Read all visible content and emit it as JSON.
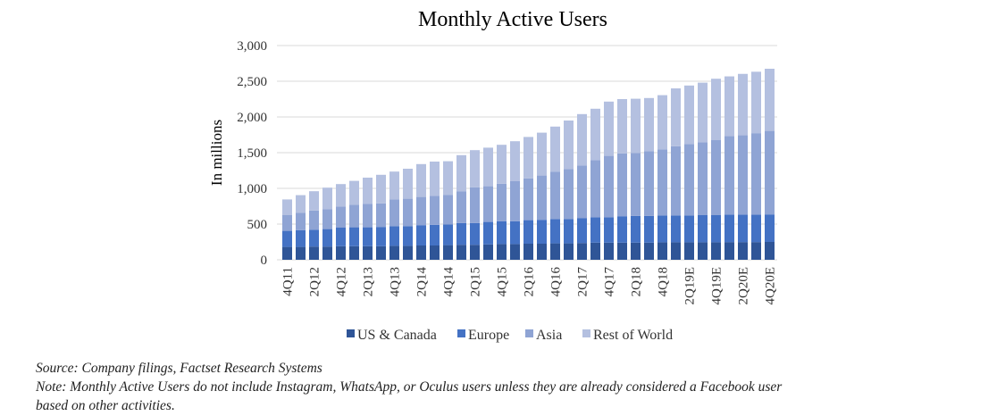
{
  "chart_data": {
    "type": "bar",
    "stacked": true,
    "title": "Monthly Active Users",
    "xlabel": "",
    "ylabel": "In millions",
    "ylim": [
      0,
      3000
    ],
    "yticks": [
      0,
      500,
      1000,
      1500,
      2000,
      2500,
      3000
    ],
    "ytick_labels": [
      "0",
      "500",
      "1,000",
      "1,500",
      "2,000",
      "2,500",
      "3,000"
    ],
    "grid": true,
    "legend_position": "bottom",
    "categories": [
      "4Q11",
      "1Q12",
      "2Q12",
      "3Q12",
      "4Q12",
      "1Q13",
      "2Q13",
      "3Q13",
      "4Q13",
      "1Q14",
      "2Q14",
      "3Q14",
      "4Q14",
      "1Q15",
      "2Q15",
      "3Q15",
      "4Q15",
      "1Q16",
      "2Q16",
      "3Q16",
      "4Q16",
      "1Q17",
      "2Q17",
      "3Q17",
      "4Q17",
      "1Q18",
      "2Q18",
      "3Q18",
      "4Q18",
      "1Q19E",
      "2Q19E",
      "3Q19E",
      "4Q19E",
      "1Q20E",
      "2Q20E",
      "3Q20E",
      "4Q20E"
    ],
    "visible_tick_labels": [
      "4Q11",
      "2Q12",
      "4Q12",
      "2Q13",
      "4Q13",
      "2Q14",
      "4Q14",
      "2Q15",
      "4Q15",
      "2Q16",
      "4Q16",
      "2Q17",
      "4Q17",
      "2Q18",
      "4Q18",
      "2Q19E",
      "4Q19E",
      "2Q20E",
      "4Q20E"
    ],
    "series": [
      {
        "name": "US & Canada",
        "color": "#2f5597",
        "values": [
          180,
          180,
          185,
          185,
          190,
          190,
          190,
          190,
          195,
          195,
          200,
          200,
          205,
          210,
          210,
          215,
          220,
          220,
          225,
          225,
          230,
          230,
          235,
          240,
          240,
          240,
          240,
          240,
          245,
          245,
          245,
          245,
          245,
          248,
          248,
          248,
          250
        ]
      },
      {
        "name": "Europe",
        "color": "#4472c4",
        "values": [
          225,
          235,
          235,
          245,
          260,
          265,
          265,
          270,
          275,
          275,
          285,
          290,
          290,
          305,
          305,
          315,
          320,
          320,
          330,
          335,
          340,
          340,
          350,
          355,
          355,
          370,
          375,
          375,
          375,
          375,
          375,
          380,
          380,
          385,
          385,
          385,
          385
        ]
      },
      {
        "name": "Asia",
        "color": "#8fa4d4",
        "values": [
          220,
          245,
          270,
          280,
          295,
          315,
          330,
          330,
          375,
          385,
          395,
          405,
          415,
          445,
          500,
          500,
          525,
          560,
          585,
          620,
          665,
          700,
          735,
          800,
          860,
          880,
          880,
          905,
          925,
          970,
          1000,
          1020,
          1050,
          1100,
          1110,
          1140,
          1170
        ]
      },
      {
        "name": "Rest of World",
        "color": "#b4c0e0",
        "values": [
          220,
          245,
          270,
          300,
          315,
          335,
          365,
          400,
          390,
          420,
          460,
          480,
          470,
          505,
          520,
          540,
          545,
          560,
          580,
          600,
          630,
          680,
          720,
          720,
          760,
          760,
          760,
          745,
          760,
          810,
          820,
          835,
          860,
          835,
          860,
          860,
          870
        ]
      }
    ]
  },
  "notes": {
    "source": "Source: Company filings, Factset Research Systems",
    "note_line1": "Note: Monthly Active Users do not include Instagram, WhatsApp, or Oculus users unless they are already considered a Facebook user",
    "note_line2": "based on other activities."
  }
}
